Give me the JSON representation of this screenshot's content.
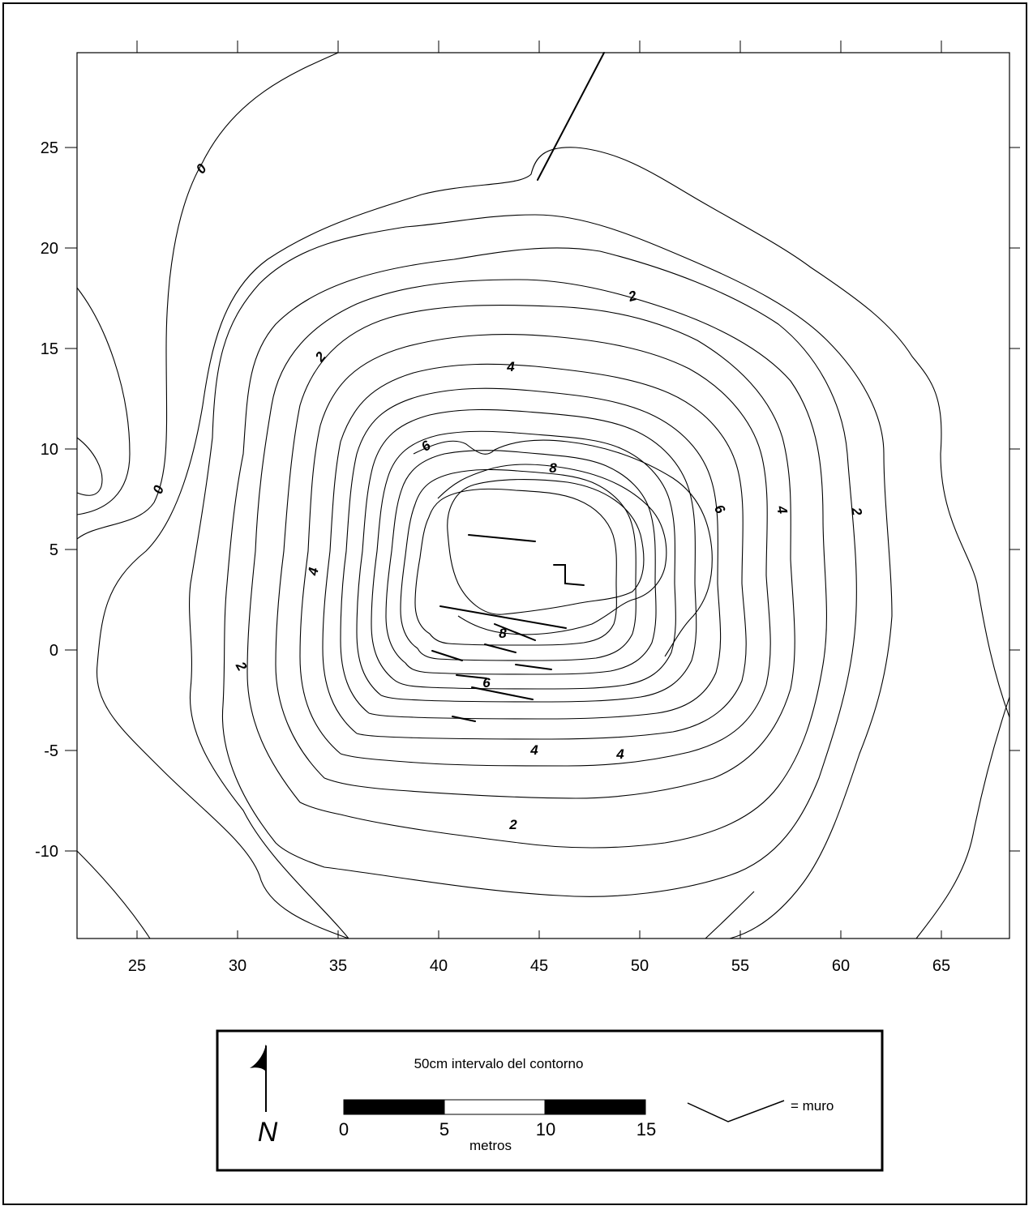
{
  "axes": {
    "x_ticks": [
      "25",
      "30",
      "35",
      "40",
      "45",
      "50",
      "55",
      "60",
      "65"
    ],
    "y_ticks": [
      "25",
      "20",
      "15",
      "10",
      "5",
      "0",
      "-5",
      "-10"
    ]
  },
  "contour_labels": {
    "zero_top": "0",
    "zero_left": "0",
    "two_top": "2",
    "two_left": "2",
    "two_right": "2",
    "two_bottom_left": "2",
    "two_bottom": "2",
    "four_top": "4",
    "four_left": "4",
    "four_right": "4",
    "four_bottom_a": "4",
    "four_bottom_b": "4",
    "six_top": "6",
    "six_right": "6",
    "six_bottom": "6",
    "eight_top": "8",
    "eight_bottom": "8"
  },
  "legend": {
    "interval_label": "50cm intervalo del contorno",
    "north_label": "N",
    "scale_ticks": [
      "0",
      "5",
      "10",
      "15"
    ],
    "scale_unit": "metros",
    "wall_label": "= muro"
  }
}
